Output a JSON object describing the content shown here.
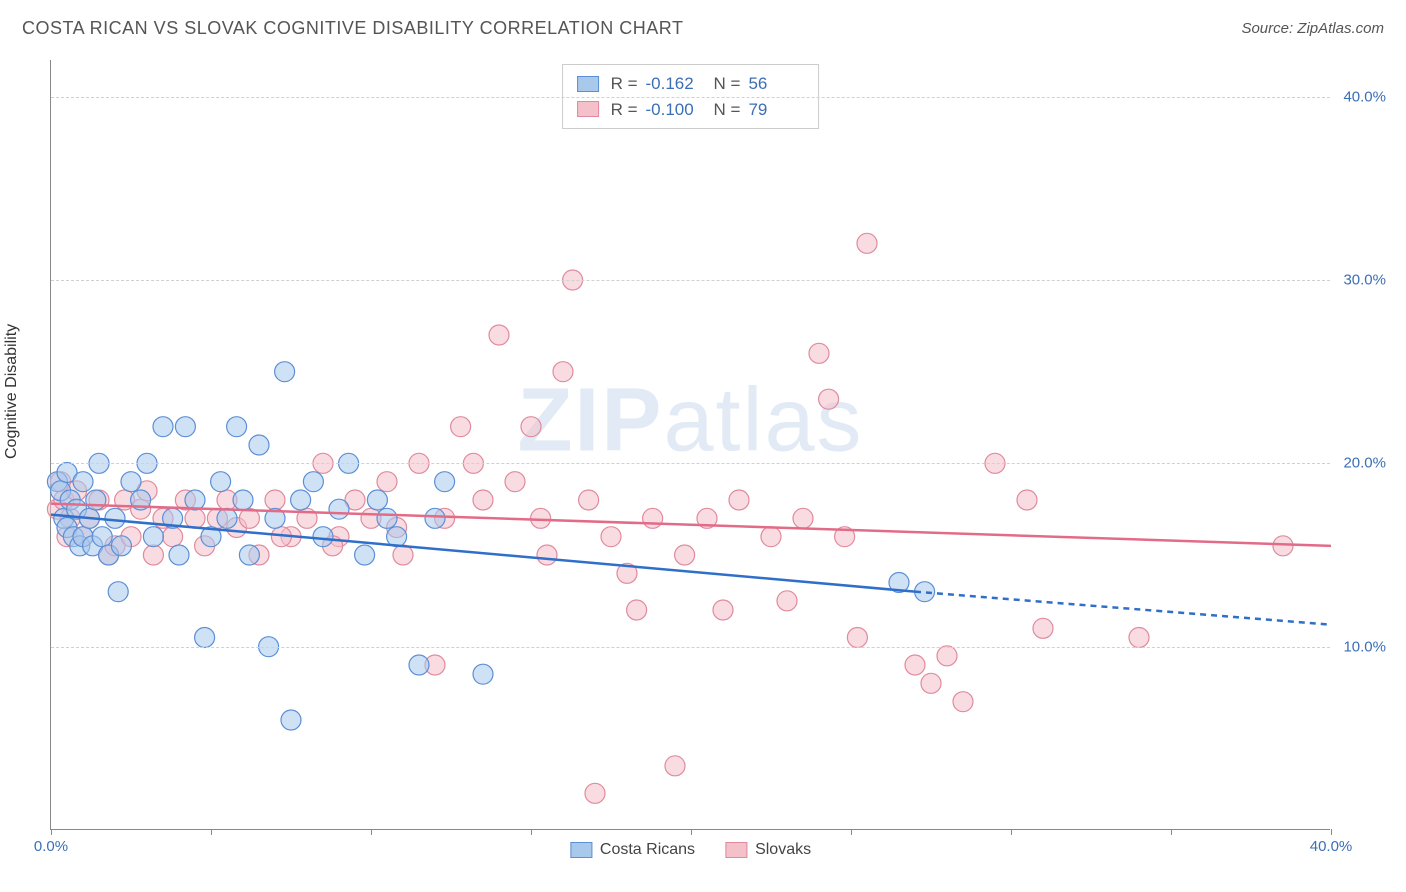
{
  "title": "COSTA RICAN VS SLOVAK COGNITIVE DISABILITY CORRELATION CHART",
  "source_label": "Source: ZipAtlas.com",
  "ylabel": "Cognitive Disability",
  "watermark_bold": "ZIP",
  "watermark_light": "atlas",
  "chart": {
    "type": "scatter",
    "xlim": [
      0,
      40
    ],
    "ylim": [
      0,
      42
    ],
    "xticks": [
      0,
      5,
      10,
      15,
      20,
      25,
      30,
      35,
      40
    ],
    "xtick_labels": {
      "0": "0.0%",
      "40": "40.0%"
    },
    "yticks": [
      10,
      20,
      30,
      40
    ],
    "ytick_labels": [
      "10.0%",
      "20.0%",
      "30.0%",
      "40.0%"
    ],
    "grid_color": "#d0d0d0",
    "background_color": "#ffffff",
    "marker_radius": 10,
    "marker_opacity": 0.55,
    "line_width": 2.5,
    "series": [
      {
        "name": "Costa Ricans",
        "fill": "#a8c8ec",
        "stroke": "#5b8fd6",
        "line_color": "#2f6fc9",
        "R": "-0.162",
        "N": "56",
        "trend": {
          "x1": 0,
          "y1": 17.2,
          "x2": 27,
          "y2": 13.0,
          "dash_to_x": 40,
          "dash_to_y": 11.2
        },
        "points": [
          [
            0.2,
            19
          ],
          [
            0.3,
            18.5
          ],
          [
            0.4,
            17
          ],
          [
            0.5,
            19.5
          ],
          [
            0.5,
            16.5
          ],
          [
            0.6,
            18
          ],
          [
            0.7,
            16
          ],
          [
            0.8,
            17.5
          ],
          [
            0.9,
            15.5
          ],
          [
            1.0,
            16
          ],
          [
            1.0,
            19
          ],
          [
            1.2,
            17
          ],
          [
            1.3,
            15.5
          ],
          [
            1.4,
            18
          ],
          [
            1.5,
            20
          ],
          [
            1.6,
            16
          ],
          [
            1.8,
            15
          ],
          [
            2.0,
            17
          ],
          [
            2.1,
            13
          ],
          [
            2.2,
            15.5
          ],
          [
            2.5,
            19
          ],
          [
            2.8,
            18
          ],
          [
            3.0,
            20
          ],
          [
            3.2,
            16
          ],
          [
            3.5,
            22
          ],
          [
            3.8,
            17
          ],
          [
            4.0,
            15
          ],
          [
            4.2,
            22
          ],
          [
            4.5,
            18
          ],
          [
            4.8,
            10.5
          ],
          [
            5.0,
            16
          ],
          [
            5.3,
            19
          ],
          [
            5.5,
            17
          ],
          [
            5.8,
            22
          ],
          [
            6.0,
            18
          ],
          [
            6.2,
            15
          ],
          [
            6.5,
            21
          ],
          [
            6.8,
            10
          ],
          [
            7.0,
            17
          ],
          [
            7.3,
            25
          ],
          [
            7.5,
            6
          ],
          [
            7.8,
            18
          ],
          [
            8.2,
            19
          ],
          [
            8.5,
            16
          ],
          [
            9.0,
            17.5
          ],
          [
            9.3,
            20
          ],
          [
            9.8,
            15
          ],
          [
            10.2,
            18
          ],
          [
            10.5,
            17
          ],
          [
            10.8,
            16
          ],
          [
            11.5,
            9
          ],
          [
            12.0,
            17
          ],
          [
            12.3,
            19
          ],
          [
            13.5,
            8.5
          ],
          [
            26.5,
            13.5
          ],
          [
            27.3,
            13
          ]
        ]
      },
      {
        "name": "Slovaks",
        "fill": "#f4c0ca",
        "stroke": "#e08a9d",
        "line_color": "#e26b87",
        "R": "-0.100",
        "N": "79",
        "trend": {
          "x1": 0,
          "y1": 17.8,
          "x2": 40,
          "y2": 15.5
        },
        "points": [
          [
            0.2,
            17.5
          ],
          [
            0.3,
            19
          ],
          [
            0.4,
            18
          ],
          [
            0.5,
            16
          ],
          [
            0.6,
            17
          ],
          [
            0.8,
            18.5
          ],
          [
            1.0,
            16
          ],
          [
            1.2,
            17
          ],
          [
            1.5,
            18
          ],
          [
            1.8,
            15
          ],
          [
            2.0,
            15.5
          ],
          [
            2.3,
            18
          ],
          [
            2.5,
            16
          ],
          [
            2.8,
            17.5
          ],
          [
            3.0,
            18.5
          ],
          [
            3.2,
            15
          ],
          [
            3.5,
            17
          ],
          [
            3.8,
            16
          ],
          [
            4.2,
            18
          ],
          [
            4.5,
            17
          ],
          [
            4.8,
            15.5
          ],
          [
            5.2,
            17
          ],
          [
            5.5,
            18
          ],
          [
            5.8,
            16.5
          ],
          [
            6.2,
            17
          ],
          [
            6.5,
            15
          ],
          [
            7.0,
            18
          ],
          [
            7.5,
            16
          ],
          [
            8.0,
            17
          ],
          [
            8.5,
            20
          ],
          [
            9.0,
            16
          ],
          [
            9.5,
            18
          ],
          [
            10.0,
            17
          ],
          [
            10.5,
            19
          ],
          [
            10.8,
            16.5
          ],
          [
            11.0,
            15
          ],
          [
            11.5,
            20
          ],
          [
            12.0,
            9
          ],
          [
            12.3,
            17
          ],
          [
            12.8,
            22
          ],
          [
            13.2,
            20
          ],
          [
            13.5,
            18
          ],
          [
            14.0,
            27
          ],
          [
            14.5,
            19
          ],
          [
            15.0,
            22
          ],
          [
            15.3,
            17
          ],
          [
            15.5,
            15
          ],
          [
            16.0,
            25
          ],
          [
            16.3,
            30
          ],
          [
            16.8,
            18
          ],
          [
            17.0,
            2
          ],
          [
            17.5,
            16
          ],
          [
            18.0,
            14
          ],
          [
            18.3,
            12
          ],
          [
            18.8,
            17
          ],
          [
            19.5,
            3.5
          ],
          [
            19.8,
            15
          ],
          [
            20.5,
            17
          ],
          [
            21.0,
            12
          ],
          [
            21.5,
            18
          ],
          [
            22.5,
            16
          ],
          [
            23.0,
            12.5
          ],
          [
            23.5,
            17
          ],
          [
            24.0,
            26
          ],
          [
            24.3,
            23.5
          ],
          [
            24.8,
            16
          ],
          [
            25.2,
            10.5
          ],
          [
            25.5,
            32
          ],
          [
            27.0,
            9
          ],
          [
            27.5,
            8
          ],
          [
            28.0,
            9.5
          ],
          [
            28.5,
            7
          ],
          [
            29.5,
            20
          ],
          [
            30.5,
            18
          ],
          [
            31.0,
            11
          ],
          [
            34.0,
            10.5
          ],
          [
            38.5,
            15.5
          ],
          [
            7.2,
            16
          ],
          [
            8.8,
            15.5
          ]
        ]
      }
    ]
  },
  "legend_bottom": [
    {
      "label": "Costa Ricans",
      "fill": "#a8c8ec",
      "stroke": "#5b8fd6"
    },
    {
      "label": "Slovaks",
      "fill": "#f4c0ca",
      "stroke": "#e08a9d"
    }
  ]
}
